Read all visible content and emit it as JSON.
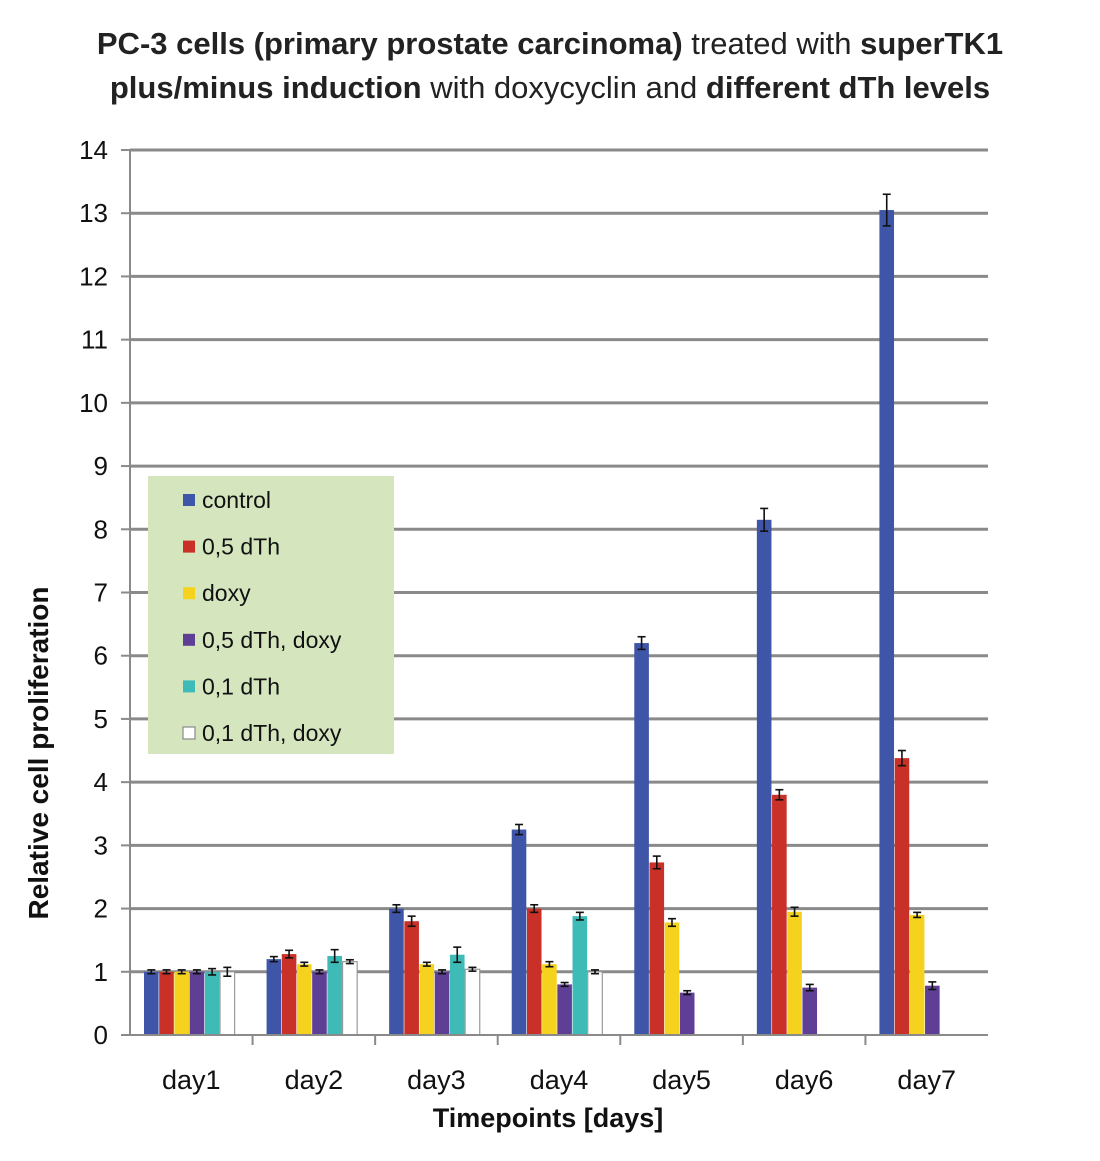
{
  "title": {
    "line1": [
      {
        "text": "PC-3 cells (primary prostate carcinoma)",
        "bold": true
      },
      {
        "text": " treated with ",
        "bold": false
      },
      {
        "text": "superTK1",
        "bold": true
      }
    ],
    "line2": [
      {
        "text": "plus/minus induction",
        "bold": true
      },
      {
        "text": " with doxycyclin and ",
        "bold": false
      },
      {
        "text": "different dTh levels",
        "bold": true
      }
    ]
  },
  "chart_data": {
    "type": "bar",
    "title": "PC-3 cells (primary prostate carcinoma) treated with superTK1 plus/minus induction with doxycyclin and different dTh levels",
    "xlabel": "Timepoints [days]",
    "ylabel": "Relative cell proliferation",
    "ylim": [
      0,
      14
    ],
    "yticks": [
      0,
      1,
      2,
      3,
      4,
      5,
      6,
      7,
      8,
      9,
      10,
      11,
      12,
      13,
      14
    ],
    "grid": true,
    "legend_position": "middle-left",
    "categories": [
      "day1",
      "day2",
      "day3",
      "day4",
      "day5",
      "day6",
      "day7"
    ],
    "series": [
      {
        "name": "control",
        "color": "#3F55A8",
        "values": [
          1.0,
          1.2,
          2.0,
          3.25,
          6.2,
          8.15,
          13.05
        ],
        "errors": [
          0.03,
          0.04,
          0.06,
          0.08,
          0.1,
          0.18,
          0.25
        ]
      },
      {
        "name": "0,5 dTh",
        "color": "#C93028",
        "values": [
          1.0,
          1.28,
          1.8,
          2.0,
          2.73,
          3.8,
          4.38
        ],
        "errors": [
          0.03,
          0.06,
          0.08,
          0.06,
          0.1,
          0.08,
          0.12
        ]
      },
      {
        "name": "doxy",
        "color": "#F5D21E",
        "values": [
          1.0,
          1.12,
          1.12,
          1.12,
          1.78,
          1.95,
          1.9
        ],
        "errors": [
          0.03,
          0.03,
          0.03,
          0.04,
          0.06,
          0.07,
          0.04
        ]
      },
      {
        "name": "0,5 dTh, doxy",
        "color": "#5F3E95",
        "values": [
          1.0,
          1.0,
          1.0,
          0.8,
          0.67,
          0.75,
          0.78
        ],
        "errors": [
          0.03,
          0.03,
          0.03,
          0.03,
          0.03,
          0.05,
          0.06
        ]
      },
      {
        "name": "0,1 dTh",
        "color": "#3FBBB7",
        "values": [
          1.0,
          1.25,
          1.27,
          1.88,
          null,
          null,
          null
        ],
        "errors": [
          0.05,
          0.1,
          0.12,
          0.06,
          null,
          null,
          null
        ]
      },
      {
        "name": "0,1 dTh, doxy",
        "color": "#FFFFFF",
        "values": [
          1.0,
          1.16,
          1.04,
          1.0,
          null,
          null,
          null
        ],
        "errors": [
          0.07,
          0.03,
          0.03,
          0.03,
          null,
          null,
          null
        ]
      }
    ]
  }
}
